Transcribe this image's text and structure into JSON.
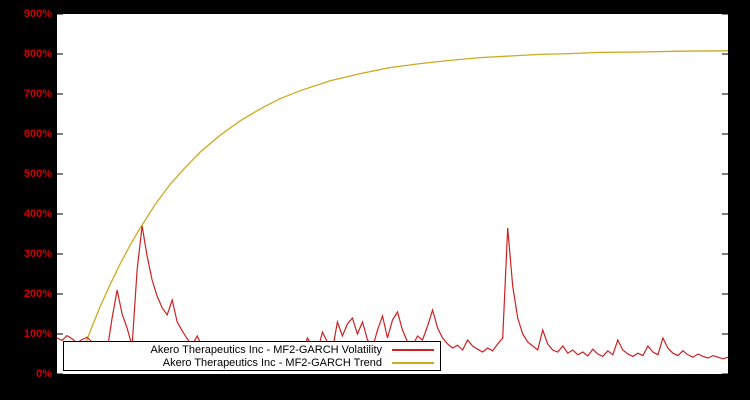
{
  "colors": {
    "background": "#000000",
    "plot_background": "#ffffff",
    "axis_label_color": "#cc0000",
    "volatility_color": "#cc2222",
    "trend_color": "#ccaa22"
  },
  "legend": {
    "items": [
      {
        "label": "Akero Therapeutics Inc - MF2-GARCH Volatility",
        "color": "#cc2222"
      },
      {
        "label": "Akero Therapeutics Inc - MF2-GARCH Trend",
        "color": "#ccaa22"
      }
    ]
  },
  "chart_data": {
    "type": "line",
    "title": "",
    "xlabel": "",
    "ylabel": "",
    "ylim": [
      0,
      900
    ],
    "yticks": [
      "0%",
      "100%",
      "200%",
      "300%",
      "400%",
      "500%",
      "600%",
      "700%",
      "800%",
      "900%"
    ],
    "grid": false,
    "legend_position": "bottom-left",
    "series": [
      {
        "name": "Akero Therapeutics Inc - MF2-GARCH Volatility",
        "color": "#cc2222",
        "unit": "percent",
        "values": [
          90,
          84,
          96,
          88,
          78,
          86,
          92,
          80,
          74,
          64,
          58,
          140,
          210,
          150,
          115,
          70,
          260,
          370,
          295,
          235,
          195,
          165,
          148,
          185,
          130,
          108,
          88,
          72,
          95,
          68,
          58,
          52,
          66,
          48,
          44,
          52,
          46,
          42,
          55,
          48,
          44,
          50,
          42,
          46,
          58,
          44,
          40,
          52,
          60,
          46,
          90,
          70,
          55,
          105,
          80,
          60,
          130,
          95,
          125,
          140,
          100,
          130,
          85,
          65,
          110,
          145,
          90,
          135,
          155,
          110,
          80,
          70,
          95,
          85,
          120,
          160,
          115,
          90,
          75,
          65,
          72,
          60,
          85,
          70,
          62,
          55,
          65,
          58,
          75,
          90,
          365,
          220,
          140,
          100,
          80,
          70,
          60,
          110,
          75,
          60,
          55,
          70,
          52,
          60,
          48,
          55,
          45,
          62,
          50,
          44,
          58,
          48,
          85,
          60,
          50,
          44,
          52,
          46,
          70,
          55,
          48,
          90,
          65,
          52,
          46,
          58,
          48,
          42,
          50,
          44,
          40,
          46,
          42,
          38,
          42
        ]
      },
      {
        "name": "Akero Therapeutics Inc - MF2-GARCH Trend",
        "color": "#ccaa22",
        "unit": "percent",
        "points": [
          [
            0.027,
            10
          ],
          [
            0.034,
            36
          ],
          [
            0.049,
            105
          ],
          [
            0.064,
            167
          ],
          [
            0.079,
            223
          ],
          [
            0.094,
            275
          ],
          [
            0.109,
            322
          ],
          [
            0.124,
            365
          ],
          [
            0.146,
            423
          ],
          [
            0.168,
            473
          ],
          [
            0.191,
            516
          ],
          [
            0.213,
            554
          ],
          [
            0.243,
            597
          ],
          [
            0.273,
            633
          ],
          [
            0.303,
            663
          ],
          [
            0.332,
            688
          ],
          [
            0.362,
            708
          ],
          [
            0.407,
            733
          ],
          [
            0.452,
            751
          ],
          [
            0.496,
            766
          ],
          [
            0.541,
            776
          ],
          [
            0.586,
            784
          ],
          [
            0.63,
            791
          ],
          [
            0.675,
            795
          ],
          [
            0.72,
            799
          ],
          [
            0.765,
            801
          ],
          [
            0.809,
            804
          ],
          [
            0.869,
            805
          ],
          [
            0.928,
            807
          ],
          [
            1.0,
            808
          ]
        ]
      }
    ]
  }
}
